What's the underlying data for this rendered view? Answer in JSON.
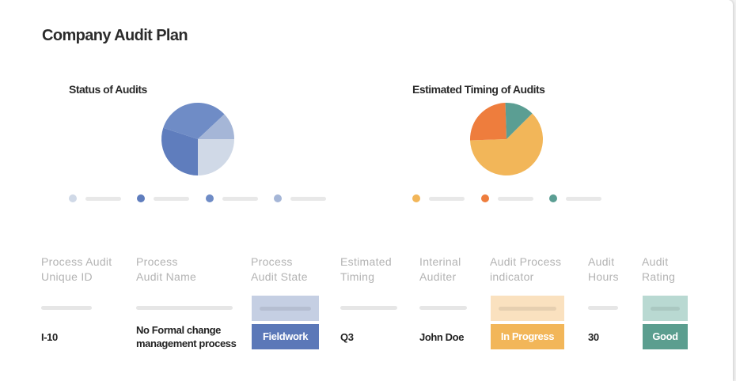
{
  "header": {
    "title": "Company Audit Plan"
  },
  "chart_data": [
    {
      "type": "pie",
      "title": "Status of Audits",
      "values": [
        25,
        30,
        33,
        12
      ],
      "colors": [
        "#d0d9e7",
        "#5f7dbd",
        "#6f8cc6",
        "#a5b6d7"
      ]
    },
    {
      "type": "pie",
      "title": "Estimated Timing of Audits",
      "values": [
        62,
        25,
        13
      ],
      "colors": [
        "#f2b659",
        "#ee7d3d",
        "#5b9e93"
      ]
    }
  ],
  "table": {
    "headers": [
      "Process Audit\nUnique ID",
      "Process\nAudit Name",
      "Process\nAudit  State",
      "Estimated\nTiming",
      "Interinal\nAuditer",
      "Audit Process\nindicator",
      "Audit\nHours",
      "Audit\nRating"
    ],
    "rows": [
      [
        "I-10",
        "No Formal change\nmanagement process",
        "Fieldwork",
        "Q3",
        "John Doe",
        "In Progress",
        "30",
        "Good"
      ]
    ]
  }
}
